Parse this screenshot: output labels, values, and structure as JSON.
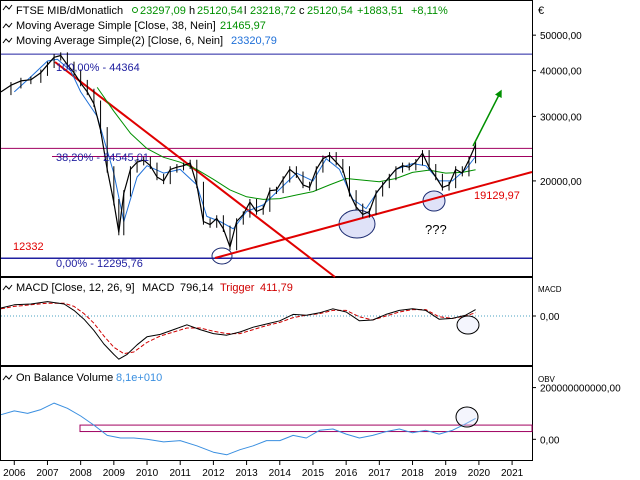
{
  "colors": {
    "price": "#000000",
    "ma38": "#009000",
    "ma6": "#1e6fd8",
    "trendline": "#e00000",
    "fib": "#2020a0",
    "resistance": "#a00060",
    "macd": "#000000",
    "trigger": "#d00000",
    "obv": "#3a8fe0",
    "positive": "#009000",
    "axis": "#000000",
    "highlight_fill": "#dfe2f8"
  },
  "chart_data": [
    {
      "type": "line",
      "title": "FTSE MIB/d",
      "subtitle": "Monatlich",
      "ohlc": {
        "open_value": "23297,09",
        "high_value": "25120,54",
        "low_value": "23218,72",
        "close_value": "25120,54",
        "change_value": "+1883,51",
        "change_pct": "+8,11%"
      },
      "currency": "€",
      "yscale": "log",
      "ylim": [
        11000,
        55000
      ],
      "yticks": [
        20000,
        30000,
        40000,
        50000
      ],
      "yticklabels": [
        "20000,00",
        "30000,00",
        "40000,00",
        "50000,00"
      ],
      "x_years": [
        2006,
        2007,
        2008,
        2009,
        2010,
        2011,
        2012,
        2013,
        2014,
        2015,
        2016,
        2017,
        2018,
        2019,
        2020,
        2021
      ],
      "xlim": [
        2005.6,
        2021.6
      ],
      "series": [
        {
          "name": "Moving Average Simple [Close, 38, Nein]",
          "last_value": "21465,97",
          "x": [
            2008.5,
            2009.0,
            2009.5,
            2010.0,
            2010.5,
            2011.0,
            2011.5,
            2012.0,
            2012.5,
            2013.0,
            2013.5,
            2014.0,
            2014.5,
            2015.0,
            2015.5,
            2016.0,
            2016.5,
            2017.0,
            2017.5,
            2018.0,
            2018.5,
            2019.0,
            2019.5,
            2019.9
          ],
          "y": [
            36000,
            31000,
            27000,
            24500,
            23200,
            22500,
            21500,
            20200,
            18900,
            18100,
            17800,
            17900,
            18300,
            18700,
            19500,
            20300,
            20100,
            19900,
            20300,
            21100,
            21400,
            21000,
            21100,
            21466
          ]
        },
        {
          "name": "Moving Average Simple(2) [Close, 6, Nein]",
          "last_value": "23320,79",
          "x": [
            2006.0,
            2006.5,
            2007.0,
            2007.3,
            2007.7,
            2008.0,
            2008.5,
            2009.0,
            2009.3,
            2009.7,
            2010.0,
            2010.5,
            2011.0,
            2011.5,
            2011.8,
            2012.2,
            2012.6,
            2013.0,
            2013.5,
            2014.0,
            2014.5,
            2015.0,
            2015.4,
            2015.8,
            2016.2,
            2016.6,
            2017.0,
            2017.5,
            2018.0,
            2018.4,
            2018.8,
            2019.2,
            2019.6,
            2019.9
          ],
          "y": [
            35000,
            38500,
            42500,
            43000,
            40000,
            35000,
            30000,
            21000,
            15500,
            20500,
            22000,
            21000,
            21500,
            19500,
            16000,
            15500,
            14800,
            16500,
            17200,
            19000,
            21000,
            20000,
            23000,
            21500,
            17800,
            16800,
            19000,
            21500,
            22300,
            22000,
            20000,
            20000,
            21500,
            23321
          ]
        },
        {
          "name": "Close",
          "x": [
            2005.6,
            2005.9,
            2006.2,
            2006.5,
            2006.8,
            2007.0,
            2007.2,
            2007.4,
            2007.6,
            2007.8,
            2008.0,
            2008.2,
            2008.4,
            2008.6,
            2008.8,
            2009.0,
            2009.15,
            2009.3,
            2009.5,
            2009.7,
            2009.9,
            2010.1,
            2010.3,
            2010.5,
            2010.7,
            2010.9,
            2011.1,
            2011.3,
            2011.5,
            2011.7,
            2011.9,
            2012.1,
            2012.3,
            2012.5,
            2012.7,
            2012.9,
            2013.1,
            2013.3,
            2013.5,
            2013.7,
            2013.9,
            2014.1,
            2014.3,
            2014.5,
            2014.7,
            2014.9,
            2015.1,
            2015.3,
            2015.5,
            2015.7,
            2015.9,
            2016.1,
            2016.3,
            2016.5,
            2016.7,
            2016.9,
            2017.1,
            2017.3,
            2017.5,
            2017.7,
            2017.9,
            2018.1,
            2018.3,
            2018.5,
            2018.7,
            2018.9,
            2019.1,
            2019.3,
            2019.5,
            2019.7,
            2019.9
          ],
          "y": [
            35000,
            36500,
            37500,
            37800,
            39500,
            41500,
            43500,
            44000,
            41500,
            39500,
            37000,
            35000,
            32500,
            27500,
            21500,
            17500,
            14500,
            18500,
            21500,
            22500,
            22800,
            22000,
            20500,
            20000,
            21500,
            21800,
            22000,
            22400,
            19500,
            15500,
            15200,
            15800,
            14800,
            13200,
            15500,
            16200,
            17500,
            16500,
            16800,
            18800,
            18900,
            20200,
            21500,
            20800,
            19500,
            19200,
            21500,
            23000,
            23500,
            22500,
            21500,
            18500,
            17000,
            16200,
            16500,
            18500,
            19500,
            20500,
            21500,
            22000,
            21800,
            22500,
            23800,
            21800,
            20500,
            19200,
            19500,
            21500,
            21000,
            22800,
            25120
          ]
        }
      ],
      "levels": [
        {
          "label": "100,00% - 44364",
          "value": 44364
        },
        {
          "label": "38,20% - 24545,01",
          "value": 24545
        },
        {
          "label": "0,00% - 12295,76",
          "value": 12296
        }
      ],
      "annotations": {
        "low_label": "12332",
        "trend_label": "19129,97",
        "question": "???"
      }
    },
    {
      "type": "line",
      "title": "MACD",
      "legend_text": "MACD [Close, 12, 26, 9]",
      "macd_value": "796,14",
      "trigger_label": "Trigger",
      "trigger_value": "411,79",
      "axis_label": "MACD",
      "ylim": [
        -6000,
        3500
      ],
      "yticks": [
        0
      ],
      "yticklabels": [
        "0,00"
      ],
      "series": [
        {
          "name": "MACD",
          "x": [
            2005.6,
            2006.0,
            2006.5,
            2007.0,
            2007.5,
            2007.8,
            2008.1,
            2008.4,
            2008.7,
            2009.0,
            2009.15,
            2009.4,
            2009.7,
            2010.0,
            2010.4,
            2010.8,
            2011.2,
            2011.6,
            2012.0,
            2012.4,
            2012.8,
            2013.2,
            2013.6,
            2014.0,
            2014.4,
            2014.8,
            2015.2,
            2015.6,
            2016.0,
            2016.4,
            2016.8,
            2017.2,
            2017.6,
            2018.0,
            2018.4,
            2018.8,
            2019.2,
            2019.6,
            2019.9
          ],
          "y": [
            1000,
            1400,
            1500,
            1800,
            1500,
            700,
            -400,
            -1800,
            -3500,
            -4800,
            -5400,
            -4800,
            -3600,
            -2600,
            -2300,
            -1700,
            -1100,
            -1700,
            -2200,
            -2400,
            -2000,
            -1400,
            -1000,
            -600,
            200,
            100,
            400,
            900,
            500,
            -600,
            -500,
            200,
            700,
            900,
            700,
            -400,
            -300,
            100,
            796
          ]
        },
        {
          "name": "Trigger",
          "x": [
            2005.6,
            2006.0,
            2006.5,
            2007.0,
            2007.5,
            2007.8,
            2008.1,
            2008.4,
            2008.7,
            2009.0,
            2009.3,
            2009.6,
            2010.0,
            2010.4,
            2010.8,
            2011.2,
            2011.6,
            2012.0,
            2012.4,
            2012.8,
            2013.2,
            2013.6,
            2014.0,
            2014.4,
            2014.8,
            2015.2,
            2015.6,
            2016.0,
            2016.4,
            2016.8,
            2017.2,
            2017.6,
            2018.0,
            2018.4,
            2018.8,
            2019.2,
            2019.6,
            2019.9
          ],
          "y": [
            900,
            1200,
            1400,
            1600,
            1600,
            1200,
            300,
            -900,
            -2500,
            -3900,
            -4700,
            -4500,
            -3300,
            -2500,
            -2000,
            -1500,
            -1500,
            -1900,
            -2200,
            -2200,
            -1700,
            -1200,
            -800,
            -200,
            100,
            300,
            700,
            700,
            -100,
            -500,
            0,
            500,
            800,
            800,
            -100,
            -300,
            0,
            412
          ]
        }
      ]
    },
    {
      "type": "line",
      "title": "On Balance Volume",
      "obv_value": "8,1e+010",
      "axis_label": "OBV",
      "ylim": [
        -80000000000,
        210000000000
      ],
      "yticks": [
        0,
        200000000000
      ],
      "yticklabels": [
        "0,00",
        "200000000000,00"
      ],
      "x_years": [
        2006,
        2007,
        2008,
        2009,
        2010,
        2011,
        2012,
        2013,
        2014,
        2015,
        2016,
        2017,
        2018,
        2019,
        2020,
        2021
      ],
      "series": [
        {
          "name": "On Balance Volume",
          "x": [
            2005.6,
            2006.0,
            2006.4,
            2006.8,
            2007.2,
            2007.6,
            2008.0,
            2008.4,
            2008.8,
            2009.2,
            2009.6,
            2010.0,
            2010.5,
            2011.0,
            2011.5,
            2012.0,
            2012.4,
            2012.8,
            2013.2,
            2013.6,
            2014.0,
            2014.4,
            2014.8,
            2015.2,
            2015.6,
            2016.0,
            2016.4,
            2016.8,
            2017.2,
            2017.6,
            2018.0,
            2018.4,
            2018.8,
            2019.2,
            2019.6,
            2019.9
          ],
          "y": [
            95000000000,
            110000000000,
            100000000000,
            115000000000,
            140000000000,
            120000000000,
            90000000000,
            55000000000,
            15000000000,
            5000000000,
            5000000000,
            0,
            -10000000000,
            -5000000000,
            -25000000000,
            -50000000000,
            -60000000000,
            -40000000000,
            -25000000000,
            -5000000000,
            -5000000000,
            15000000000,
            5000000000,
            35000000000,
            40000000000,
            20000000000,
            5000000000,
            15000000000,
            30000000000,
            40000000000,
            25000000000,
            35000000000,
            20000000000,
            35000000000,
            60000000000,
            81000000000
          ]
        }
      ],
      "band": [
        30000000000,
        55000000000
      ]
    }
  ]
}
